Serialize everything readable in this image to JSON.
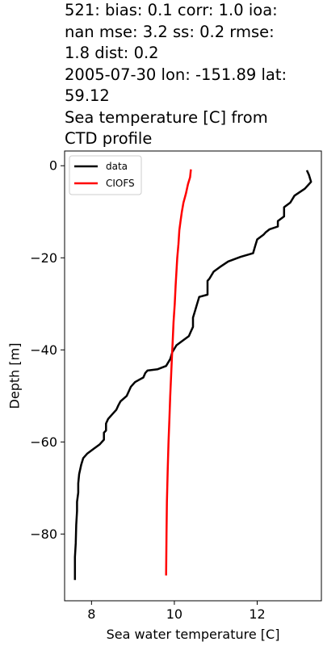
{
  "chart_data": {
    "type": "line",
    "title": "521: bias: 0.1  corr: 1.0  ioa: nan  mse: 3.2  ss: 0.2  rmse: 1.8  dist: 0.2\n2005-07-30 lon: -151.89 lat: 59.12\nSea temperature [C] from CTD profile",
    "title_lines": [
      "521: bias: 0.1  corr: 1.0  ioa:",
      "nan  mse: 3.2  ss: 0.2  rmse:",
      "1.8  dist: 0.2",
      "2005-07-30 lon: -151.89 lat:",
      "59.12",
      "Sea temperature [C] from",
      "CTD profile"
    ],
    "xlabel": "Sea water temperature [C]",
    "ylabel": "Depth [m]",
    "xlim": [
      7.35,
      13.55
    ],
    "ylim": [
      -94.5,
      3.2
    ],
    "xticks": [
      8,
      10,
      12
    ],
    "yticks": [
      0,
      -20,
      -40,
      -60,
      -80
    ],
    "ytick_labels": [
      "0",
      "−20",
      "−40",
      "−60",
      "−80"
    ],
    "grid": false,
    "legend_position": "upper-left",
    "series": [
      {
        "name": "data",
        "color": "#000000",
        "points": [
          [
            13.2,
            -1
          ],
          [
            13.25,
            -2
          ],
          [
            13.3,
            -3.5
          ],
          [
            13.15,
            -5
          ],
          [
            12.9,
            -6.5
          ],
          [
            12.8,
            -8
          ],
          [
            12.65,
            -9
          ],
          [
            12.65,
            -11
          ],
          [
            12.5,
            -12
          ],
          [
            12.5,
            -13.2
          ],
          [
            12.3,
            -13.8
          ],
          [
            12.2,
            -14.5
          ],
          [
            12.15,
            -15
          ],
          [
            12.0,
            -16
          ],
          [
            11.95,
            -17.5
          ],
          [
            11.9,
            -19
          ],
          [
            11.6,
            -19.8
          ],
          [
            11.3,
            -20.8
          ],
          [
            11.1,
            -22
          ],
          [
            10.95,
            -23
          ],
          [
            10.85,
            -24.5
          ],
          [
            10.8,
            -25
          ],
          [
            10.8,
            -27
          ],
          [
            10.8,
            -28
          ],
          [
            10.6,
            -28.5
          ],
          [
            10.55,
            -30
          ],
          [
            10.5,
            -31.5
          ],
          [
            10.45,
            -33
          ],
          [
            10.45,
            -35
          ],
          [
            10.4,
            -36
          ],
          [
            10.35,
            -37
          ],
          [
            10.2,
            -38
          ],
          [
            10.05,
            -39
          ],
          [
            9.95,
            -40.5
          ],
          [
            9.9,
            -42
          ],
          [
            9.8,
            -43.5
          ],
          [
            9.6,
            -44.2
          ],
          [
            9.35,
            -44.5
          ],
          [
            9.3,
            -45
          ],
          [
            9.25,
            -46
          ],
          [
            9.15,
            -46.5
          ],
          [
            9.05,
            -47
          ],
          [
            8.95,
            -48
          ],
          [
            8.9,
            -49
          ],
          [
            8.85,
            -50
          ],
          [
            8.7,
            -51.2
          ],
          [
            8.65,
            -52
          ],
          [
            8.6,
            -53
          ],
          [
            8.5,
            -54
          ],
          [
            8.4,
            -55
          ],
          [
            8.35,
            -56
          ],
          [
            8.35,
            -57.5
          ],
          [
            8.3,
            -58
          ],
          [
            8.3,
            -59.5
          ],
          [
            8.2,
            -60.5
          ],
          [
            8.05,
            -61.5
          ],
          [
            7.9,
            -62.5
          ],
          [
            7.8,
            -63.5
          ],
          [
            7.75,
            -65
          ],
          [
            7.7,
            -67
          ],
          [
            7.68,
            -69
          ],
          [
            7.68,
            -71
          ],
          [
            7.65,
            -73
          ],
          [
            7.65,
            -75
          ],
          [
            7.63,
            -78
          ],
          [
            7.62,
            -82
          ],
          [
            7.6,
            -85
          ],
          [
            7.6,
            -88
          ],
          [
            7.6,
            -90
          ]
        ]
      },
      {
        "name": "CIOFS",
        "color": "#ff0000",
        "points": [
          [
            10.4,
            -0.8
          ],
          [
            10.38,
            -2.5
          ],
          [
            10.33,
            -4
          ],
          [
            10.28,
            -6
          ],
          [
            10.22,
            -8
          ],
          [
            10.18,
            -10
          ],
          [
            10.15,
            -12
          ],
          [
            10.12,
            -14
          ],
          [
            10.1,
            -17
          ],
          [
            10.07,
            -20
          ],
          [
            10.05,
            -23
          ],
          [
            10.03,
            -26
          ],
          [
            10.01,
            -30
          ],
          [
            9.98,
            -34
          ],
          [
            9.96,
            -38
          ],
          [
            9.94,
            -42
          ],
          [
            9.92,
            -46
          ],
          [
            9.9,
            -50
          ],
          [
            9.88,
            -55
          ],
          [
            9.86,
            -60
          ],
          [
            9.84,
            -66
          ],
          [
            9.82,
            -73
          ],
          [
            9.81,
            -80
          ],
          [
            9.8,
            -89
          ]
        ]
      }
    ]
  }
}
